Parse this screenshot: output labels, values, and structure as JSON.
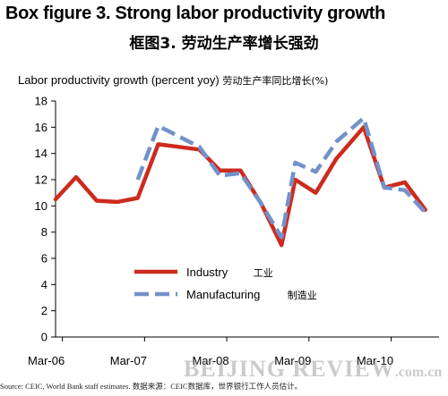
{
  "title_en": "Box figure 3. Strong labor productivity growth",
  "title_cn": "框图3. 劳动生产率增长强劲",
  "ylabel_en": "Labor productivity growth (percent yoy)",
  "ylabel_cn": "劳动生产率同比增长(%)",
  "source": "Source: CEIC, World Bank staff estimates.    数据来源：CEIC数据库，世界银行工作人员估计。",
  "watermark": "BEIJING REVIEW",
  "watermark_suffix": ".com.cn",
  "chart_data": {
    "type": "line",
    "ylim": [
      0,
      18
    ],
    "yticks": [
      0,
      2,
      4,
      6,
      8,
      10,
      12,
      14,
      16,
      18
    ],
    "x_tick_labels": [
      "Mar-06",
      "Mar-07",
      "Mar-08",
      "Mar-09",
      "Mar-10"
    ],
    "x_tick_index": [
      1,
      13,
      25,
      37,
      49
    ],
    "x_count": 57,
    "grid": false,
    "legend_position": "lower-center",
    "series": [
      {
        "name": "Industry",
        "name_cn": "工业",
        "color": "#cc2b1d",
        "style": "solid",
        "points": [
          [
            0,
            10.5
          ],
          [
            3,
            12.2
          ],
          [
            6,
            10.4
          ],
          [
            9,
            10.3
          ],
          [
            12,
            10.6
          ],
          [
            15,
            14.7
          ],
          [
            18,
            14.5
          ],
          [
            21,
            14.3
          ],
          [
            24,
            12.7
          ],
          [
            27,
            12.7
          ],
          [
            30,
            10.2
          ],
          [
            33,
            7.0
          ],
          [
            35,
            12.0
          ],
          [
            38,
            11.0
          ],
          [
            41,
            13.6
          ],
          [
            45,
            16.0
          ],
          [
            48,
            11.4
          ],
          [
            51,
            11.8
          ],
          [
            54,
            9.7
          ]
        ]
      },
      {
        "name": "Manufacturing",
        "name_cn": "制造业",
        "color": "#7391c9",
        "style": "dashed",
        "points": [
          [
            12,
            12.0
          ],
          [
            15,
            16.1
          ],
          [
            18,
            15.3
          ],
          [
            21,
            14.5
          ],
          [
            24,
            12.3
          ],
          [
            27,
            12.5
          ],
          [
            30,
            10.2
          ],
          [
            33,
            7.6
          ],
          [
            35,
            13.3
          ],
          [
            38,
            12.6
          ],
          [
            41,
            14.9
          ],
          [
            45,
            16.7
          ],
          [
            48,
            11.4
          ],
          [
            51,
            11.2
          ],
          [
            54,
            9.5
          ]
        ]
      }
    ]
  }
}
